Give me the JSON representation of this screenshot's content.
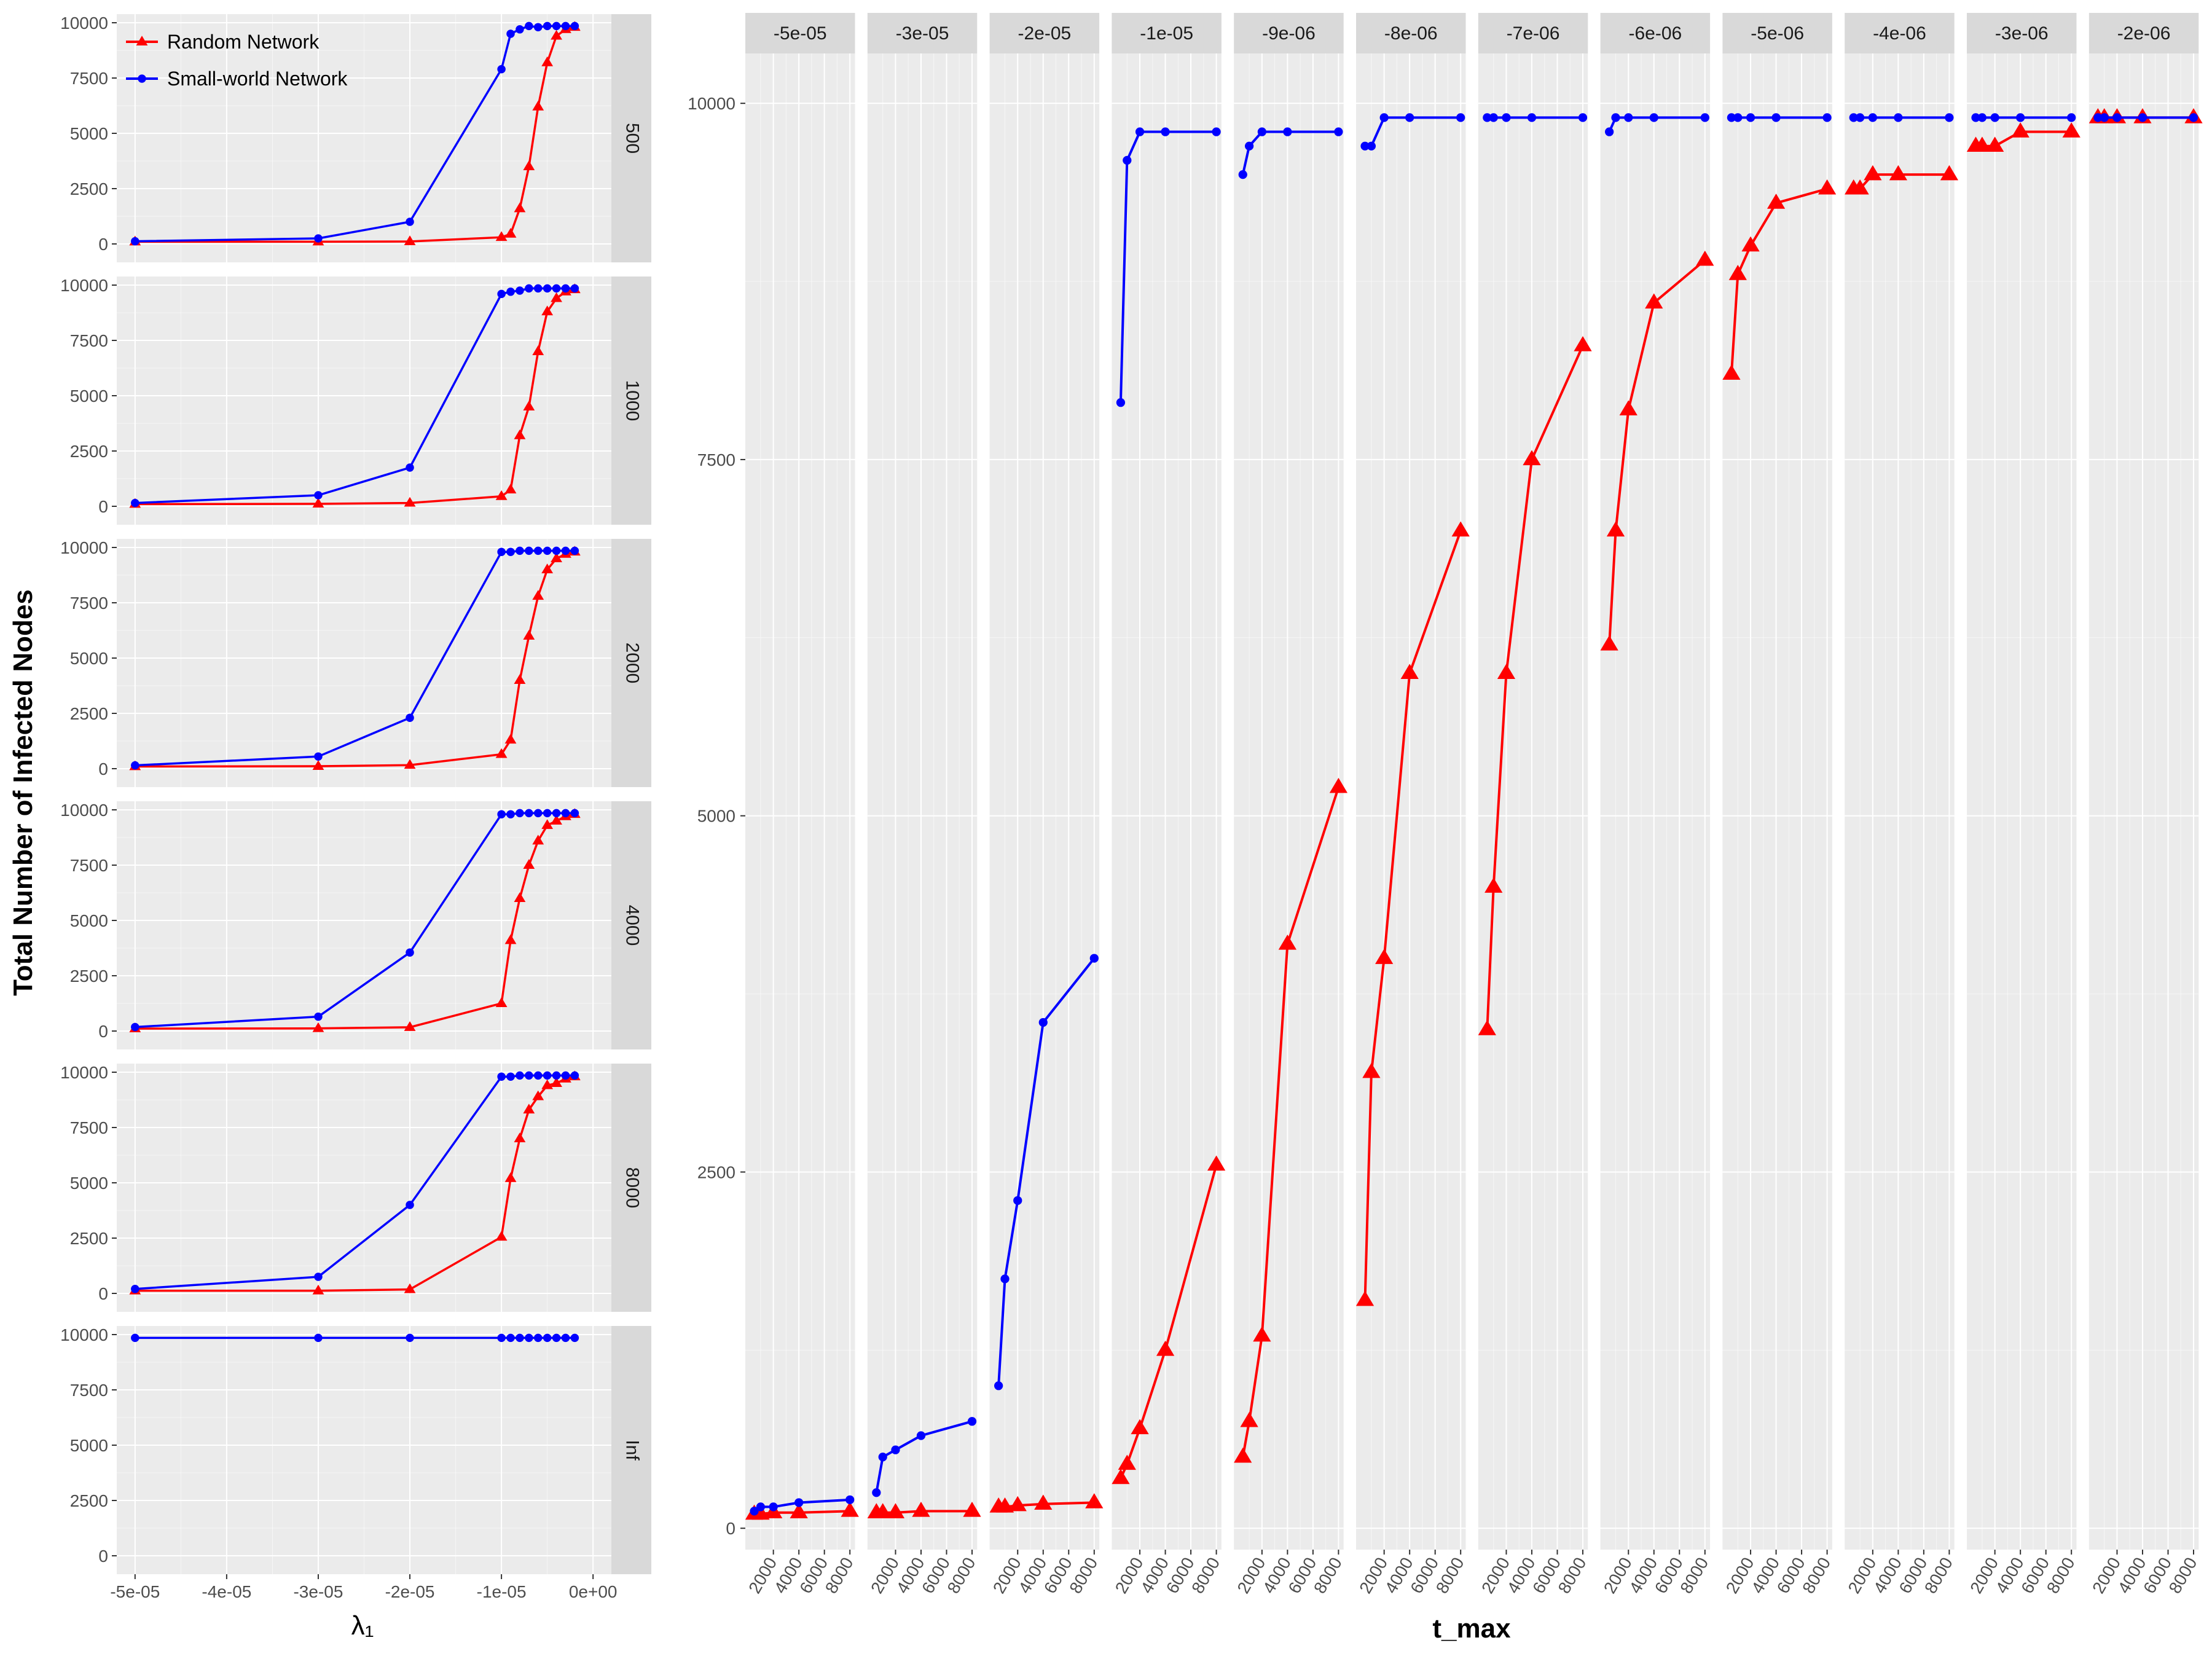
{
  "y_axis_title": "Total Number of Infected Nodes",
  "left_x_axis_title": "λ₁",
  "right_x_axis_title": "t_max",
  "colors": {
    "random": "#ff0000",
    "small_world": "#0000ff",
    "panel_bg": "#ebebeb",
    "strip_bg": "#d9d9d9",
    "grid": "#ffffff"
  },
  "legend": {
    "position": "top-left",
    "entries": [
      {
        "label": "Random Network",
        "color": "#ff0000",
        "marker": "triangle"
      },
      {
        "label": "Small-world Network",
        "color": "#0000ff",
        "marker": "circle"
      }
    ]
  },
  "chart_data": [
    {
      "type": "line",
      "title": "",
      "xlabel": "λ₁",
      "ylabel": "Total Number of Infected Nodes",
      "facet": "row",
      "xlim": [
        -5.2e-05,
        2e-06
      ],
      "ylim": [
        0,
        10000
      ],
      "x_ticks": [
        -5e-05,
        -4e-05,
        -3e-05,
        -2e-05,
        -1e-05,
        0
      ],
      "x_tick_labels": [
        "-5e-05",
        "-4e-05",
        "-3e-05",
        "-2e-05",
        "-1e-05",
        "0e+00"
      ],
      "y_ticks": [
        0,
        2500,
        5000,
        7500,
        10000
      ],
      "y_tick_labels": [
        "0",
        "2500",
        "5000",
        "7500",
        "10000"
      ],
      "grid": true,
      "x": [
        -5e-05,
        -3e-05,
        -2e-05,
        -1e-05,
        -9e-06,
        -8e-06,
        -7e-06,
        -6e-06,
        -5e-06,
        -4e-06,
        -3e-06,
        -2e-06
      ],
      "panels": [
        {
          "strip": "500",
          "series": [
            {
              "name": "Random Network",
              "values": [
                100,
                100,
                110,
                300,
                450,
                1600,
                3500,
                6200,
                8200,
                9400,
                9700,
                9800
              ]
            },
            {
              "name": "Small-world Network",
              "values": [
                120,
                250,
                1000,
                7900,
                9500,
                9700,
                9850,
                9800,
                9850,
                9850,
                9850,
                9850
              ]
            }
          ]
        },
        {
          "strip": "1000",
          "series": [
            {
              "name": "Random Network",
              "values": [
                100,
                110,
                150,
                450,
                750,
                3200,
                4500,
                7000,
                8800,
                9400,
                9700,
                9800
              ]
            },
            {
              "name": "Small-world Network",
              "values": [
                150,
                500,
                1750,
                9600,
                9700,
                9750,
                9850,
                9850,
                9850,
                9850,
                9850,
                9850
              ]
            }
          ]
        },
        {
          "strip": "2000",
          "series": [
            {
              "name": "Random Network",
              "values": [
                100,
                110,
                160,
                650,
                1300,
                4000,
                6000,
                7800,
                9000,
                9500,
                9700,
                9800
              ]
            },
            {
              "name": "Small-world Network",
              "values": [
                150,
                550,
                2300,
                9800,
                9800,
                9850,
                9850,
                9850,
                9850,
                9850,
                9850,
                9850
              ]
            }
          ]
        },
        {
          "strip": "4000",
          "series": [
            {
              "name": "Random Network",
              "values": [
                110,
                120,
                170,
                1250,
                4100,
                6000,
                7500,
                8600,
                9300,
                9500,
                9700,
                9800
              ]
            },
            {
              "name": "Small-world Network",
              "values": [
                180,
                650,
                3550,
                9800,
                9800,
                9850,
                9850,
                9850,
                9850,
                9850,
                9850,
                9850
              ]
            }
          ]
        },
        {
          "strip": "8000",
          "series": [
            {
              "name": "Random Network",
              "values": [
                120,
                120,
                180,
                2550,
                5200,
                7000,
                8300,
                8900,
                9400,
                9500,
                9700,
                9800
              ]
            },
            {
              "name": "Small-world Network",
              "values": [
                200,
                750,
                4000,
                9800,
                9800,
                9850,
                9850,
                9850,
                9850,
                9850,
                9850,
                9850
              ]
            }
          ]
        },
        {
          "strip": "Inf",
          "series": [
            {
              "name": "Small-world Network",
              "values": [
                9850,
                9850,
                9850,
                9850,
                9850,
                9850,
                9850,
                9850,
                9850,
                9850,
                9850,
                9850
              ]
            }
          ]
        }
      ]
    },
    {
      "type": "line",
      "title": "",
      "xlabel": "t_max",
      "ylabel": "Total Number of Infected Nodes",
      "facet": "column",
      "xlim": [
        -200,
        8400
      ],
      "ylim": [
        -150,
        10350
      ],
      "x_ticks": [
        2000,
        4000,
        6000,
        8000
      ],
      "x_tick_labels": [
        "2000",
        "4000",
        "6000",
        "8000"
      ],
      "y_ticks": [
        0,
        2500,
        5000,
        7500,
        10000
      ],
      "y_tick_labels": [
        "0",
        "2500",
        "5000",
        "7500",
        "10000"
      ],
      "grid": true,
      "x": [
        500,
        1000,
        2000,
        4000,
        8000
      ],
      "panels": [
        {
          "strip": "-5e-05",
          "series": [
            {
              "name": "Random Network",
              "values": [
                100,
                100,
                110,
                110,
                120
              ]
            },
            {
              "name": "Small-world Network",
              "values": [
                120,
                150,
                150,
                180,
                200
              ]
            }
          ]
        },
        {
          "strip": "-3e-05",
          "series": [
            {
              "name": "Random Network",
              "values": [
                110,
                110,
                110,
                120,
                120
              ]
            },
            {
              "name": "Small-world Network",
              "values": [
                250,
                500,
                550,
                650,
                750
              ]
            }
          ]
        },
        {
          "strip": "-2e-05",
          "series": [
            {
              "name": "Random Network",
              "values": [
                150,
                150,
                160,
                170,
                180
              ]
            },
            {
              "name": "Small-world Network",
              "values": [
                1000,
                1750,
                2300,
                3550,
                4000
              ]
            }
          ]
        },
        {
          "strip": "-1e-05",
          "series": [
            {
              "name": "Random Network",
              "values": [
                350,
                450,
                700,
                1250,
                2550
              ]
            },
            {
              "name": "Small-world Network",
              "values": [
                7900,
                9600,
                9800,
                9800,
                9800
              ]
            }
          ]
        },
        {
          "strip": "-9e-06",
          "series": [
            {
              "name": "Random Network",
              "values": [
                500,
                750,
                1350,
                4100,
                5200
              ]
            },
            {
              "name": "Small-world Network",
              "values": [
                9500,
                9700,
                9800,
                9800,
                9800
              ]
            }
          ]
        },
        {
          "strip": "-8e-06",
          "series": [
            {
              "name": "Random Network",
              "values": [
                1600,
                3200,
                4000,
                6000,
                7000
              ]
            },
            {
              "name": "Small-world Network",
              "values": [
                9700,
                9700,
                9900,
                9900,
                9900
              ]
            }
          ]
        },
        {
          "strip": "-7e-06",
          "series": [
            {
              "name": "Random Network",
              "values": [
                3500,
                4500,
                6000,
                7500,
                8300
              ]
            },
            {
              "name": "Small-world Network",
              "values": [
                9900,
                9900,
                9900,
                9900,
                9900
              ]
            }
          ]
        },
        {
          "strip": "-6e-06",
          "series": [
            {
              "name": "Random Network",
              "values": [
                6200,
                7000,
                7850,
                8600,
                8900
              ]
            },
            {
              "name": "Small-world Network",
              "values": [
                9800,
                9900,
                9900,
                9900,
                9900
              ]
            }
          ]
        },
        {
          "strip": "-5e-06",
          "series": [
            {
              "name": "Random Network",
              "values": [
                8100,
                8800,
                9000,
                9300,
                9400
              ]
            },
            {
              "name": "Small-world Network",
              "values": [
                9900,
                9900,
                9900,
                9900,
                9900
              ]
            }
          ]
        },
        {
          "strip": "-4e-06",
          "series": [
            {
              "name": "Random Network",
              "values": [
                9400,
                9400,
                9500,
                9500,
                9500
              ]
            },
            {
              "name": "Small-world Network",
              "values": [
                9900,
                9900,
                9900,
                9900,
                9900
              ]
            }
          ]
        },
        {
          "strip": "-3e-06",
          "series": [
            {
              "name": "Random Network",
              "values": [
                9700,
                9700,
                9700,
                9800,
                9800
              ]
            },
            {
              "name": "Small-world Network",
              "values": [
                9900,
                9900,
                9900,
                9900,
                9900
              ]
            }
          ]
        },
        {
          "strip": "-2e-06",
          "series": [
            {
              "name": "Random Network",
              "values": [
                9900,
                9900,
                9900,
                9900,
                9900
              ]
            },
            {
              "name": "Small-world Network",
              "values": [
                9900,
                9900,
                9900,
                9900,
                9900
              ]
            }
          ]
        }
      ]
    }
  ]
}
